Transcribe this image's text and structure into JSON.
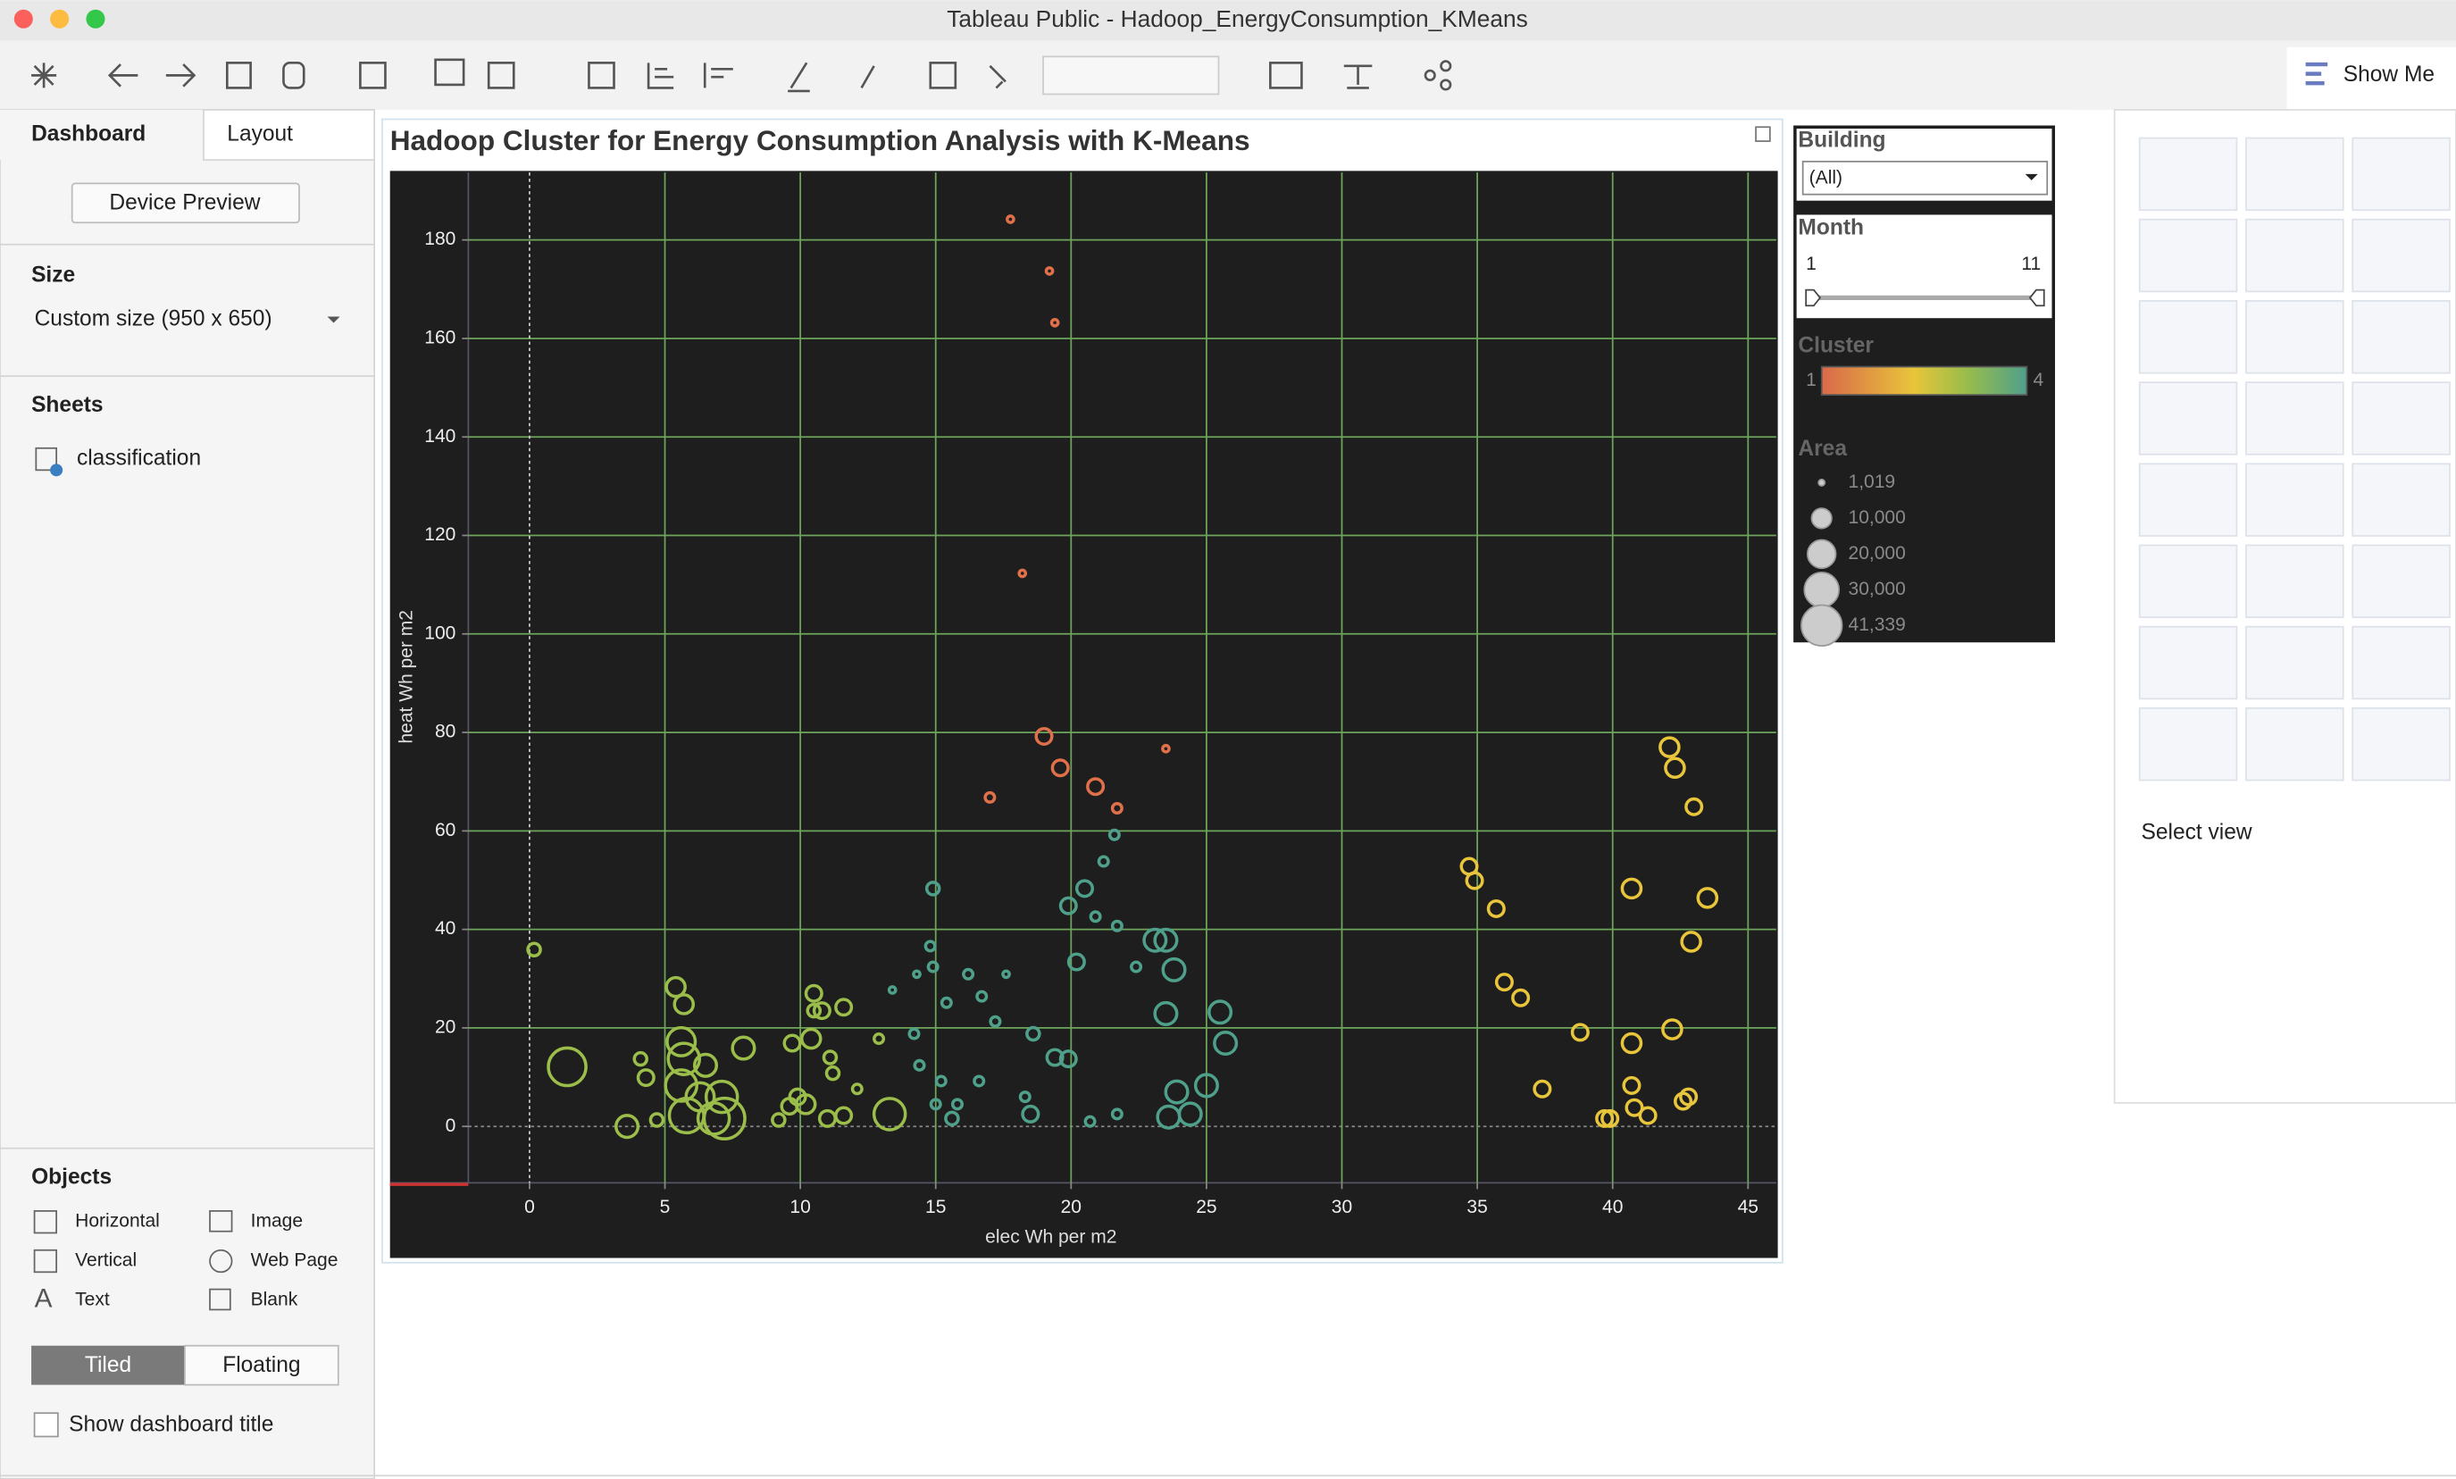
{
  "window_title": "Tableau Public - Hadoop_EnergyConsumption_KMeans",
  "toolbar": {
    "show_me": "Show Me"
  },
  "sidebar": {
    "tabs": [
      "Dashboard",
      "Layout"
    ],
    "device_preview": "Device Preview",
    "size_heading": "Size",
    "size_value": "Custom size (950 x 650)",
    "sheets_heading": "Sheets",
    "sheets": [
      "classification"
    ],
    "objects_heading": "Objects",
    "objects": [
      "Horizontal",
      "Image",
      "Vertical",
      "Web Page",
      "Text",
      "Blank"
    ],
    "layout_modes": [
      "Tiled",
      "Floating"
    ],
    "show_title": "Show dashboard title"
  },
  "filters": {
    "building": {
      "title": "Building",
      "value": "(All)"
    },
    "month": {
      "title": "Month",
      "min": 1,
      "max": 11
    },
    "cluster": {
      "title": "Cluster",
      "min": 1,
      "max": 4
    },
    "area_title": "Area"
  },
  "show_me_panel": {
    "select_view": "Select view"
  },
  "chart_data": {
    "type": "scatter",
    "title": "Hadoop Cluster for Energy Consumption Analysis with K-Means",
    "x_label": "elec Wh per m2",
    "y_label": "heat Wh per m2",
    "xlim": [
      -2.26,
      46.04
    ],
    "ylim": [
      -11.45,
      193.7
    ],
    "xticks": [
      0,
      5,
      10,
      15,
      20,
      25,
      30,
      35,
      40,
      45
    ],
    "yticks": [
      0,
      20,
      40,
      60,
      80,
      100,
      120,
      140,
      160,
      180
    ],
    "grid": true,
    "size_legend": [
      {
        "value": 1019,
        "label": "1,019"
      },
      {
        "value": 10000,
        "label": "10,000"
      },
      {
        "value": 20000,
        "label": "20,000"
      },
      {
        "value": 30000,
        "label": "30,000"
      },
      {
        "value": 41339,
        "label": "41,339"
      }
    ],
    "series": [
      {
        "color": "#e0704a",
        "x": [
          17.76,
          19.2,
          19.4,
          18.2,
          19.0,
          19.6,
          20.9,
          21.7,
          23.5,
          17.0
        ],
        "values": [
          184.2,
          173.7,
          163.2,
          112.3,
          79.2,
          72.8,
          69.0,
          64.6,
          76.7,
          66.8
        ],
        "sizes": [
          1019,
          1019,
          1019,
          1019,
          6115,
          6115,
          6115,
          2202,
          1019,
          2202
        ]
      },
      {
        "color": "#e8c53a",
        "x": [
          34.7,
          34.9,
          35.7,
          36.0,
          36.6,
          37.4,
          38.8,
          39.7,
          39.9,
          40.7,
          40.7,
          40.7,
          40.8,
          41.3,
          42.1,
          42.3,
          42.2,
          43.0,
          42.9,
          43.5,
          42.6,
          42.8
        ],
        "values": [
          52.8,
          49.9,
          44.2,
          29.3,
          26.1,
          7.6,
          19.1,
          1.6,
          1.6,
          48.3,
          16.9,
          8.3,
          3.8,
          2.2,
          77.0,
          72.8,
          19.7,
          64.9,
          37.5,
          46.4,
          5.1,
          6.0
        ],
        "sizes": [
          6115,
          6115,
          6115,
          6115,
          6115,
          6115,
          6115,
          6115,
          6115,
          8806,
          8806,
          6115,
          6115,
          6115,
          8806,
          8806,
          8806,
          6115,
          8806,
          8806,
          6115,
          6115
        ]
      },
      {
        "color": "#9bbd4a",
        "x": [
          0.17,
          1.39,
          3.6,
          4.1,
          4.3,
          4.7,
          5.4,
          5.7,
          5.6,
          5.7,
          5.6,
          5.8,
          6.3,
          6.8,
          7.2,
          7.1,
          7.9,
          6.5,
          9.2,
          9.6,
          9.9,
          9.7,
          10.4,
          10.5,
          10.8,
          11.6,
          11.1,
          11.2,
          11.6,
          11.0,
          12.1,
          13.3,
          12.9,
          10.5,
          10.2
        ],
        "values": [
          35.9,
          12.1,
          0,
          13.7,
          9.9,
          1.3,
          28.3,
          24.8,
          17.2,
          13.7,
          8.3,
          2.2,
          6.0,
          1.6,
          1.6,
          6.0,
          15.9,
          12.4,
          1.3,
          4.1,
          6.0,
          16.9,
          17.8,
          27.0,
          23.5,
          24.2,
          14.0,
          10.8,
          2.2,
          1.6,
          7.6,
          2.5,
          17.8,
          23.5,
          4.5
        ],
        "sizes": [
          3914,
          35223,
          11986,
          3914,
          6115,
          3914,
          8806,
          8806,
          19814,
          24461,
          24461,
          29597,
          19814,
          24461,
          41339,
          24461,
          11986,
          11986,
          3914,
          6115,
          6115,
          6115,
          8806,
          6115,
          6115,
          6115,
          3914,
          3914,
          6115,
          6115,
          2202,
          24461,
          2202,
          3914,
          8806
        ]
      },
      {
        "color": "#4fa08a",
        "x": [
          14.9,
          14.8,
          14.9,
          15.4,
          14.2,
          14.4,
          15.2,
          15.0,
          15.6,
          16.2,
          16.7,
          17.6,
          16.6,
          17.2,
          18.6,
          18.3,
          18.5,
          19.4,
          19.9,
          19.9,
          20.5,
          20.2,
          20.9,
          21.7,
          21.6,
          21.2,
          22.4,
          23.1,
          23.5,
          23.8,
          23.5,
          25.5,
          25.7,
          23.9,
          25.0,
          23.6,
          24.4,
          20.7,
          21.7,
          13.4,
          14.3,
          15.8
        ],
        "values": [
          48.3,
          36.6,
          32.4,
          25.1,
          18.8,
          12.4,
          9.2,
          4.5,
          1.6,
          30.9,
          26.4,
          30.9,
          9.2,
          21.3,
          18.8,
          6.0,
          2.5,
          14.0,
          13.7,
          44.8,
          48.3,
          33.4,
          42.6,
          40.7,
          59.2,
          53.8,
          32.4,
          37.8,
          37.8,
          31.8,
          22.9,
          23.2,
          16.9,
          7.0,
          8.3,
          1.9,
          2.5,
          1.0,
          2.5,
          27.7,
          30.9,
          4.5
        ],
        "sizes": [
          3914,
          2202,
          2202,
          2202,
          2202,
          2202,
          2202,
          2202,
          3914,
          2202,
          2202,
          1019,
          2202,
          2202,
          3914,
          2202,
          6115,
          6115,
          6115,
          6115,
          6115,
          6115,
          2202,
          2202,
          2202,
          2202,
          2202,
          11986,
          11986,
          11986,
          11986,
          11986,
          11986,
          11986,
          11986,
          11986,
          11986,
          2202,
          2202,
          1019,
          1019,
          2202
        ]
      }
    ]
  }
}
